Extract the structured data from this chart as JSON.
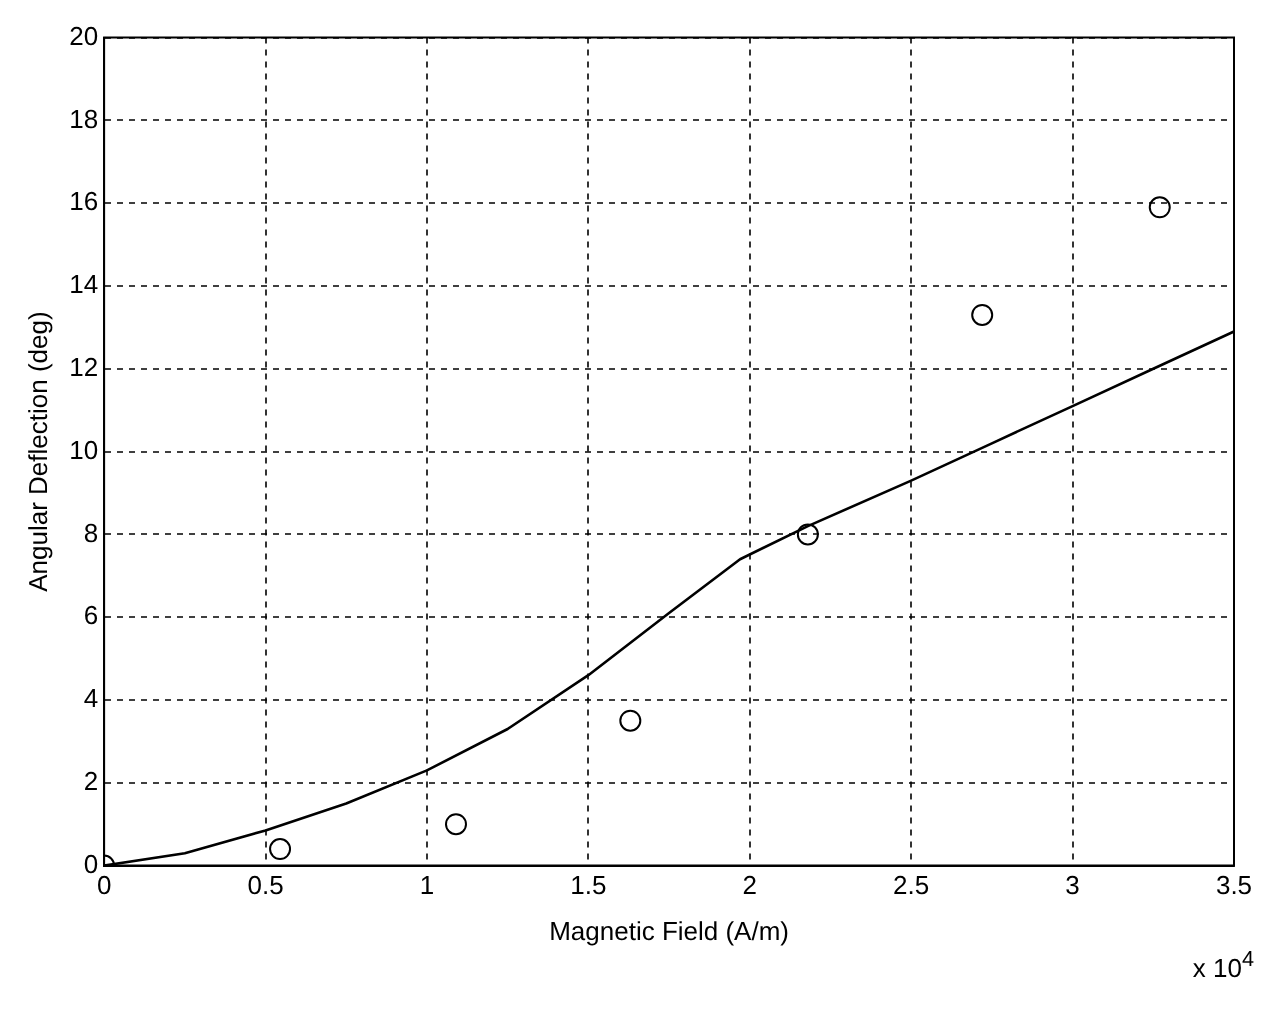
{
  "chart_data": {
    "type": "scatter",
    "xlabel": "Magnetic Field (A/m)",
    "ylabel": "Angular Deflection (deg)",
    "annotations": [
      "x 10$^{4}$"
    ],
    "xlim": [
      0,
      3.5
    ],
    "xticks": [
      0,
      0.5,
      1,
      1.5,
      2,
      2.5,
      3,
      3.5
    ],
    "ylim": [
      0,
      20
    ],
    "yticks": [
      0,
      2,
      4,
      6,
      8,
      10,
      12,
      14,
      16,
      18,
      20
    ],
    "grid": true,
    "legend": false,
    "series": [
      {
        "color": "#000000",
        "marker": "circle",
        "x": [
          0,
          0.545,
          1.09,
          1.63,
          2.18,
          2.72,
          3.27
        ],
        "values": [
          0,
          0.4,
          1.0,
          3.5,
          8.0,
          13.3,
          15.9
        ]
      },
      {
        "type": "line",
        "color": "#000000",
        "marker": "none",
        "line_style": "solid",
        "x": [
          0,
          0.25,
          0.5,
          0.75,
          1,
          1.25,
          1.5,
          1.75,
          1.97,
          2.18,
          2.5,
          2.75,
          3,
          3.25,
          3.5
        ],
        "values": [
          0,
          0.3,
          0.85,
          1.5,
          2.3,
          3.3,
          4.6,
          6.1,
          7.4,
          8.2,
          9.3,
          10.2,
          11.1,
          12.0,
          12.9
        ]
      }
    ]
  }
}
